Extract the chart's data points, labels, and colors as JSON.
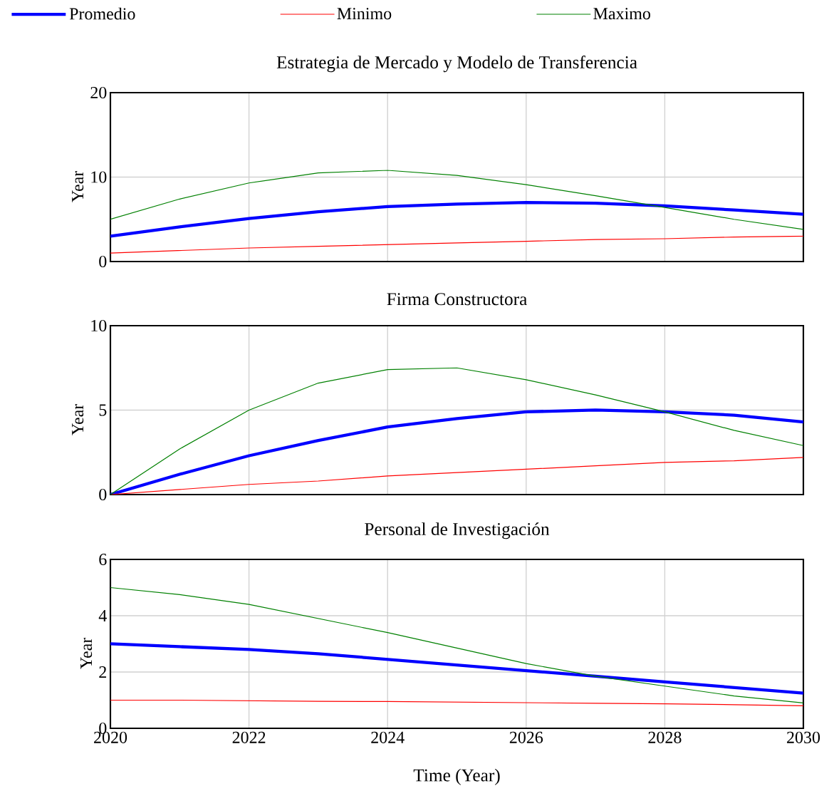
{
  "chart_data": [
    {
      "type": "line",
      "title": "Estrategia de Mercado y Modelo de Transferencia",
      "ylabel": "Year",
      "x": [
        2020,
        2021,
        2022,
        2023,
        2024,
        2025,
        2026,
        2027,
        2028,
        2029,
        2030
      ],
      "xlim": [
        2020,
        2030
      ],
      "xticks": [
        2020,
        2022,
        2024,
        2026,
        2028,
        2030
      ],
      "ylim": [
        0,
        20
      ],
      "yticks": [
        0,
        10,
        20
      ],
      "grid": true,
      "legend": "top",
      "tick_labels": "y",
      "series": [
        {
          "name": "Promedio",
          "color": "#0000ff",
          "values": [
            3.0,
            4.1,
            5.1,
            5.9,
            6.5,
            6.8,
            7.0,
            6.9,
            6.6,
            6.1,
            5.6
          ]
        },
        {
          "name": "Minimo",
          "color": "#ff0000",
          "values": [
            1.0,
            1.3,
            1.6,
            1.8,
            2.0,
            2.2,
            2.4,
            2.6,
            2.7,
            2.9,
            3.0
          ]
        },
        {
          "name": "Maximo",
          "color": "#008000",
          "values": [
            5.0,
            7.4,
            9.3,
            10.5,
            10.8,
            10.2,
            9.1,
            7.8,
            6.4,
            5.0,
            3.8
          ]
        }
      ]
    },
    {
      "type": "line",
      "title": "Firma Constructora",
      "ylabel": "Year",
      "x": [
        2020,
        2021,
        2022,
        2023,
        2024,
        2025,
        2026,
        2027,
        2028,
        2029,
        2030
      ],
      "xlim": [
        2020,
        2030
      ],
      "xticks": [
        2020,
        2022,
        2024,
        2026,
        2028,
        2030
      ],
      "ylim": [
        0,
        10
      ],
      "yticks": [
        0,
        5,
        10
      ],
      "grid": true,
      "tick_labels": "y",
      "series": [
        {
          "color": "#0000ff",
          "values": [
            0,
            1.2,
            2.3,
            3.2,
            4.0,
            4.5,
            4.9,
            5.0,
            4.9,
            4.7,
            4.3
          ]
        },
        {
          "color": "#ff0000",
          "values": [
            0,
            0.3,
            0.6,
            0.8,
            1.1,
            1.3,
            1.5,
            1.7,
            1.9,
            2.0,
            2.2
          ]
        },
        {
          "color": "#008000",
          "values": [
            0,
            2.7,
            5.0,
            6.6,
            7.4,
            7.5,
            6.8,
            5.9,
            4.9,
            3.8,
            2.9
          ]
        }
      ]
    },
    {
      "type": "line",
      "title": "Personal de Investigación",
      "xlabel": "Time (Year)",
      "ylabel": "Year",
      "x": [
        2020,
        2021,
        2022,
        2023,
        2024,
        2025,
        2026,
        2027,
        2028,
        2029,
        2030
      ],
      "xlim": [
        2020,
        2030
      ],
      "xticks": [
        2020,
        2022,
        2024,
        2026,
        2028,
        2030
      ],
      "ylim": [
        0,
        6
      ],
      "yticks": [
        0,
        2,
        4,
        6
      ],
      "grid": true,
      "series": [
        {
          "color": "#0000ff",
          "values": [
            3.0,
            2.9,
            2.8,
            2.65,
            2.45,
            2.25,
            2.05,
            1.85,
            1.65,
            1.45,
            1.25
          ]
        },
        {
          "color": "#ff0000",
          "values": [
            1.0,
            1.0,
            0.98,
            0.96,
            0.95,
            0.93,
            0.91,
            0.89,
            0.87,
            0.84,
            0.8
          ]
        },
        {
          "color": "#008000",
          "values": [
            5.0,
            4.75,
            4.4,
            3.9,
            3.4,
            2.85,
            2.3,
            1.85,
            1.5,
            1.15,
            0.9
          ]
        }
      ]
    }
  ]
}
